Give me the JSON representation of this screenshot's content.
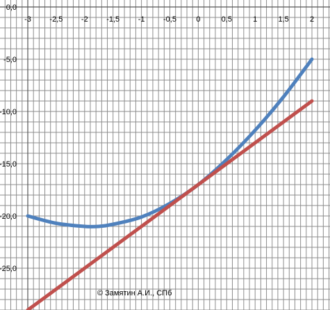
{
  "chart_data": {
    "type": "line",
    "x_ticks": [
      "-3",
      "-2,5",
      "-2",
      "-1,5",
      "-1",
      "-0,5",
      "0",
      "0,5",
      "1",
      "1,5",
      "2"
    ],
    "y_ticks": [
      "0,0",
      "-5,0",
      "-10,0",
      "-15,0",
      "-20,0",
      "-25,0"
    ],
    "xlim": [
      -3,
      2
    ],
    "ylim": [
      -29,
      0
    ],
    "grid": true,
    "series": [
      {
        "color": "#4F81BD",
        "x": [
          -3,
          -2.5,
          -2,
          -1.75,
          -1.5,
          -1,
          -0.5,
          0,
          0.5,
          1,
          1.5,
          2
        ],
        "y": [
          -20.0,
          -20.7,
          -21.0,
          -21.0,
          -20.8,
          -20.1,
          -18.8,
          -17.0,
          -14.6,
          -11.8,
          -8.6,
          -5.0
        ]
      },
      {
        "color": "#C0504D",
        "x": [
          -3,
          -2,
          -1,
          0,
          1,
          2
        ],
        "y": [
          -29.0,
          -25.0,
          -21.0,
          -17.0,
          -13.0,
          -9.0
        ]
      }
    ],
    "annotation": "© Замятин А.И., СПб"
  }
}
